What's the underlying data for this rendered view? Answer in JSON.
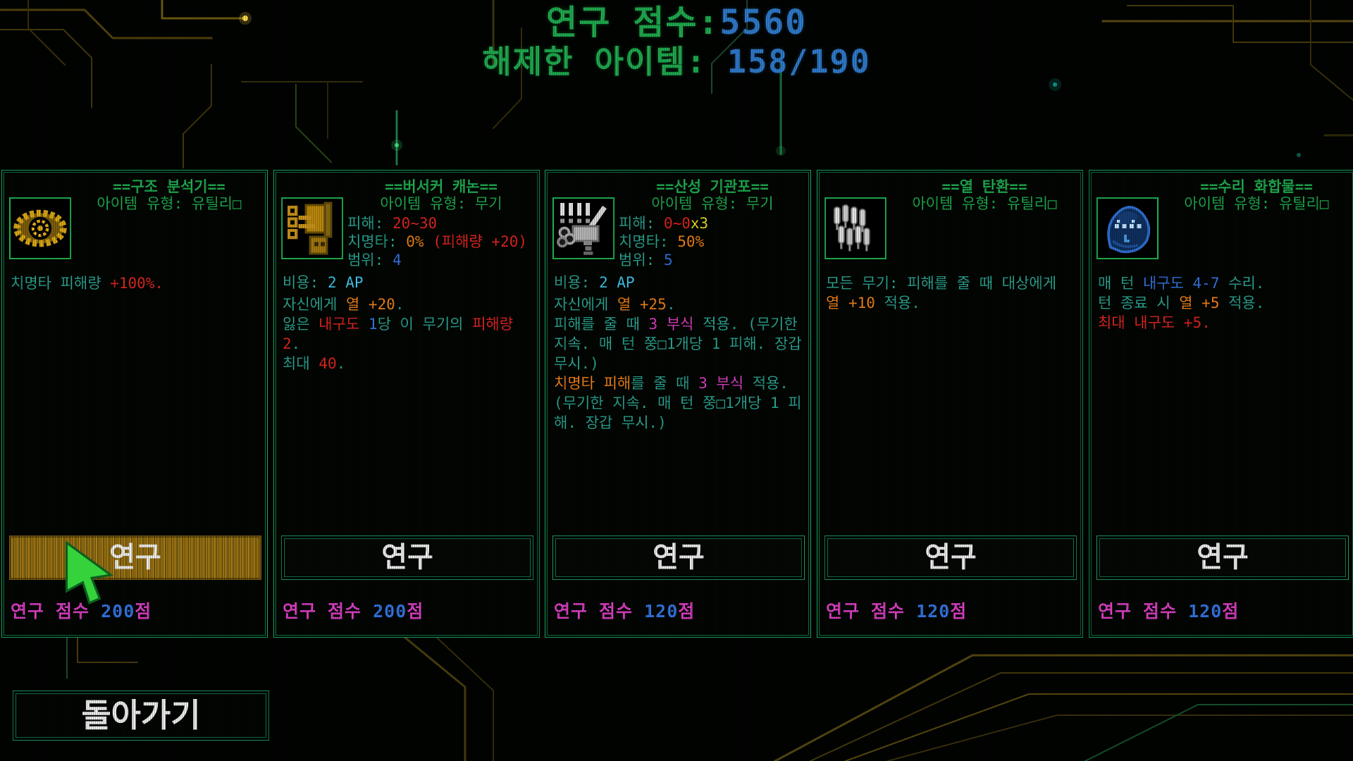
{
  "header": {
    "score_label": "연구 점수:",
    "score_value": "5560",
    "unlocked_label": "해제한 아이템: ",
    "unlocked_value": "158/190"
  },
  "back_button": {
    "label": "돌아가기"
  },
  "colors": {
    "green": "#1fa94e",
    "blue": "#2e79c9",
    "teal": "#2aa18f",
    "red": "#df2420",
    "orange": "#ef8018",
    "yellow": "#e3dd25",
    "cyan": "#3fc5ea",
    "magenta": "#da3fc2",
    "button_highlight": "#a87c14",
    "border": "#18a35c"
  },
  "cards": [
    {
      "icon": "structure-analyzer-icon",
      "title": "==구조 분석기==",
      "type": "아이템 유형: 유틸리□",
      "stats": [],
      "ap": null,
      "desc": [
        [
          {
            "t": "치명타 피해량 ",
            "c": "teal"
          },
          {
            "t": "+100%.",
            "c": "red"
          }
        ]
      ],
      "button_label": "연구",
      "highlighted": true,
      "cost": [
        {
          "t": "연구 점수 ",
          "c": "magenta"
        },
        {
          "t": "200",
          "c": "blue"
        },
        {
          "t": "점",
          "c": "magenta"
        }
      ]
    },
    {
      "icon": "berserker-cannon-icon",
      "title": "==버서커 캐논==",
      "type": "아이템 유형: 무기",
      "stats": [
        [
          {
            "t": "피해: ",
            "c": "teal"
          },
          {
            "t": "20~30",
            "c": "red"
          }
        ],
        [
          {
            "t": "치명타: ",
            "c": "teal"
          },
          {
            "t": "0%",
            "c": "orange"
          },
          {
            "t": " (피해량 +20)",
            "c": "red"
          }
        ],
        [
          {
            "t": "범위: ",
            "c": "teal"
          },
          {
            "t": "4",
            "c": "blue"
          }
        ]
      ],
      "ap": [
        {
          "t": "비용: ",
          "c": "teal"
        },
        {
          "t": "2 AP",
          "c": "cyan"
        }
      ],
      "desc": [
        [
          {
            "t": "자신에게 ",
            "c": "teal"
          },
          {
            "t": "열 +20",
            "c": "orange"
          },
          {
            "t": ".",
            "c": "teal"
          }
        ],
        [
          {
            "t": "잃은 ",
            "c": "teal"
          },
          {
            "t": "내구도",
            "c": "red"
          },
          {
            "t": " ",
            "c": "teal"
          },
          {
            "t": "1",
            "c": "blue"
          },
          {
            "t": "당 이 무기의 ",
            "c": "teal"
          },
          {
            "t": "피해량 2",
            "c": "red"
          },
          {
            "t": ".",
            "c": "teal"
          }
        ],
        [
          {
            "t": "최대 ",
            "c": "teal"
          },
          {
            "t": "40",
            "c": "red"
          },
          {
            "t": ".",
            "c": "teal"
          }
        ]
      ],
      "button_label": "연구",
      "highlighted": false,
      "cost": [
        {
          "t": "연구 점수 ",
          "c": "magenta"
        },
        {
          "t": "200",
          "c": "blue"
        },
        {
          "t": "점",
          "c": "magenta"
        }
      ]
    },
    {
      "icon": "acid-machinegun-icon",
      "title": "==산성 기관포==",
      "type": "아이템 유형: 무기",
      "stats": [
        [
          {
            "t": "피해: ",
            "c": "teal"
          },
          {
            "t": "0~0",
            "c": "red"
          },
          {
            "t": "x3",
            "c": "yellow"
          }
        ],
        [
          {
            "t": "치명타: ",
            "c": "teal"
          },
          {
            "t": "50%",
            "c": "orange"
          }
        ],
        [
          {
            "t": "범위: ",
            "c": "teal"
          },
          {
            "t": "5",
            "c": "blue"
          }
        ]
      ],
      "ap": [
        {
          "t": "비용: ",
          "c": "teal"
        },
        {
          "t": "2 AP",
          "c": "cyan"
        }
      ],
      "desc": [
        [
          {
            "t": "자신에게 ",
            "c": "teal"
          },
          {
            "t": "열 +25",
            "c": "orange"
          },
          {
            "t": ".",
            "c": "teal"
          }
        ],
        [
          {
            "t": "피해를 줄 때 ",
            "c": "teal"
          },
          {
            "t": "3 부식",
            "c": "magenta"
          },
          {
            "t": " 적용. (무기한 지속. 매 턴 쭝□1개당 1 피해. 장갑 무시.)",
            "c": "teal"
          }
        ],
        [
          {
            "t": "치명타 피해",
            "c": "orange"
          },
          {
            "t": "를 줄 때 ",
            "c": "teal"
          },
          {
            "t": "3 부식",
            "c": "magenta"
          },
          {
            "t": " 적용. (무기한 지속. 매 턴 쭝□1개당 1 피해. 장갑 무시.)",
            "c": "teal"
          }
        ]
      ],
      "button_label": "연구",
      "highlighted": false,
      "cost": [
        {
          "t": "연구 점수 ",
          "c": "magenta"
        },
        {
          "t": "120",
          "c": "blue"
        },
        {
          "t": "점",
          "c": "magenta"
        }
      ]
    },
    {
      "icon": "heat-rounds-icon",
      "title": "==열 탄환==",
      "type": "아이템 유형: 유틸리□",
      "stats": [],
      "ap": null,
      "desc": [
        [
          {
            "t": "모든 무기: 피해를 줄 때 대상에게 ",
            "c": "teal"
          },
          {
            "t": "열 +10",
            "c": "orange"
          },
          {
            "t": " 적용.",
            "c": "teal"
          }
        ]
      ],
      "button_label": "연구",
      "highlighted": false,
      "cost": [
        {
          "t": "연구 점수 ",
          "c": "magenta"
        },
        {
          "t": "120",
          "c": "blue"
        },
        {
          "t": "점",
          "c": "magenta"
        }
      ]
    },
    {
      "icon": "repair-compound-icon",
      "title": "==수리 화합물==",
      "type": "아이템 유형: 유틸리□",
      "stats": [],
      "ap": null,
      "desc": [
        [
          {
            "t": "매 턴 ",
            "c": "teal"
          },
          {
            "t": "내구도 4-7",
            "c": "blue"
          },
          {
            "t": " 수리.",
            "c": "teal"
          }
        ],
        [
          {
            "t": "턴 종료 시 ",
            "c": "teal"
          },
          {
            "t": "열 +5",
            "c": "orange"
          },
          {
            "t": " 적용.",
            "c": "teal"
          }
        ],
        [
          {
            "t": "최대 내구도 +5.",
            "c": "red"
          }
        ]
      ],
      "button_label": "연구",
      "highlighted": false,
      "cost": [
        {
          "t": "연구 점수 ",
          "c": "magenta"
        },
        {
          "t": "120",
          "c": "blue"
        },
        {
          "t": "점",
          "c": "magenta"
        }
      ]
    }
  ]
}
